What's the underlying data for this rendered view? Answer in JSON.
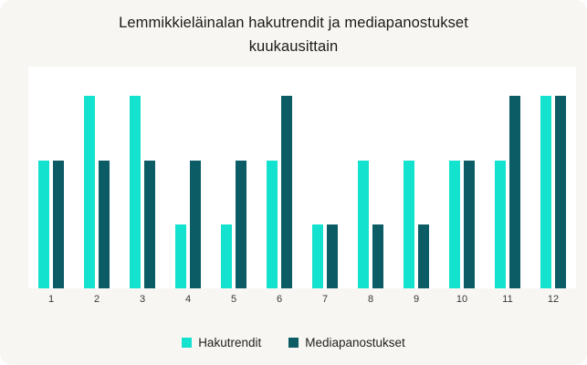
{
  "chart_data": {
    "type": "bar",
    "title": "Lemmikkieläinalan hakutrendit ja mediapanostukset kuukausittain",
    "categories": [
      "1",
      "2",
      "3",
      "4",
      "5",
      "6",
      "7",
      "8",
      "9",
      "10",
      "11",
      "12"
    ],
    "series": [
      {
        "name": "Hakutrendit",
        "color": "#13E2CE",
        "values": [
          100,
          150,
          150,
          50,
          50,
          100,
          50,
          100,
          100,
          100,
          100,
          150
        ]
      },
      {
        "name": "Mediapanostukset",
        "color": "#0B5C64",
        "values": [
          100,
          100,
          100,
          100,
          100,
          150,
          50,
          50,
          50,
          100,
          150,
          150
        ]
      }
    ],
    "xlabel": "",
    "ylabel": "",
    "ylim": [
      0,
      173
    ],
    "grid": false,
    "legend_position": "bottom"
  },
  "colors": {
    "card_background": "#F8F6F2",
    "plot_background": "#FFFFFF",
    "title_text": "#1C1B1A",
    "tick_text": "#37383A",
    "series_hakutrendit": "#13E2CE",
    "series_mediapanostukset": "#0B5C64"
  }
}
